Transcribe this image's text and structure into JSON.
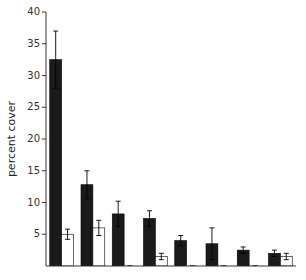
{
  "chart_data": {
    "type": "bar",
    "ylabel": "percent cover",
    "categories": [
      null,
      null,
      null,
      null,
      null,
      null,
      null,
      null
    ],
    "series": [
      {
        "color": "#1a1a1a",
        "values": [
          32.5,
          12.8,
          8.2,
          7.5,
          4.0,
          3.5,
          2.5,
          2.0
        ],
        "errors": [
          4.5,
          2.2,
          2.0,
          1.2,
          0.8,
          2.5,
          0.5,
          0.5
        ]
      },
      {
        "color": "#ffffff",
        "values": [
          5.0,
          6.0,
          0.0,
          1.5,
          0.0,
          0.0,
          0.0,
          1.5
        ],
        "errors": [
          0.8,
          1.2,
          0.0,
          0.5,
          0.0,
          0.0,
          0.0,
          0.5
        ]
      }
    ],
    "ylim": [
      0,
      40
    ],
    "yticks": [
      5,
      10,
      15,
      20,
      25,
      30,
      35,
      40
    ],
    "grid": false,
    "tick_labels": "y"
  }
}
